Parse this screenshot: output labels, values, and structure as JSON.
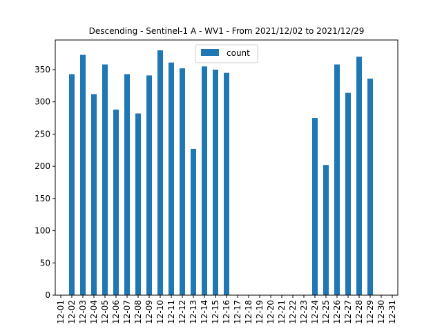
{
  "chart_data": {
    "type": "bar",
    "title": "Descending - Sentinel-1 A - WV1 - From 2021/12/02 to 2021/12/29",
    "xlabel": "",
    "ylabel": "",
    "categories": [
      "12-01",
      "12-02",
      "12-03",
      "12-04",
      "12-05",
      "12-06",
      "12-07",
      "12-08",
      "12-09",
      "12-10",
      "12-11",
      "12-12",
      "12-13",
      "12-14",
      "12-15",
      "12-16",
      "12-17",
      "12-18",
      "12-19",
      "12-20",
      "12-21",
      "12-22",
      "12-23",
      "12-24",
      "12-25",
      "12-26",
      "12-27",
      "12-28",
      "12-29",
      "12-30",
      "12-31"
    ],
    "series": [
      {
        "name": "count",
        "color": "#1f77b4",
        "values": [
          0,
          343,
          373,
          312,
          358,
          288,
          343,
          282,
          341,
          380,
          361,
          352,
          227,
          355,
          350,
          345,
          0,
          0,
          0,
          0,
          0,
          0,
          0,
          275,
          202,
          358,
          314,
          370,
          336,
          0,
          0
        ]
      }
    ],
    "ylim": [
      0,
      396
    ],
    "yticks": [
      0,
      50,
      100,
      150,
      200,
      250,
      300,
      350
    ],
    "legend": {
      "placement": "upper center",
      "entries": [
        "count"
      ]
    },
    "grid": false
  }
}
